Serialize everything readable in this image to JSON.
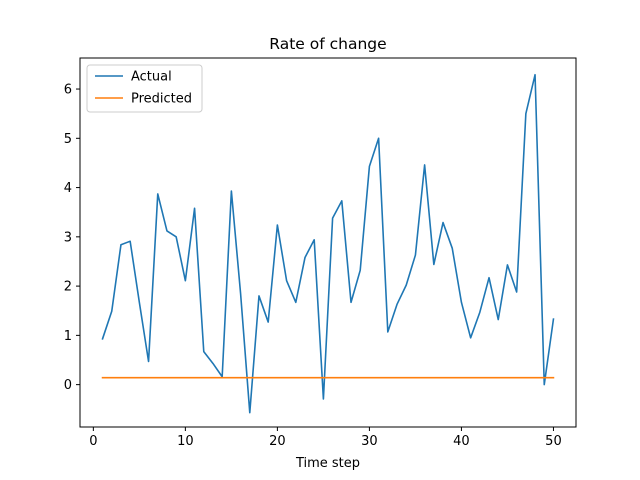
{
  "chart_data": {
    "type": "line",
    "title": "Rate of change",
    "xlabel": "Time step",
    "ylabel": "",
    "xlim": [
      -1.45,
      52.45
    ],
    "ylim": [
      -0.86,
      6.63
    ],
    "xticks": [
      0,
      10,
      20,
      30,
      40,
      50
    ],
    "yticks": [
      0,
      1,
      2,
      3,
      4,
      5,
      6
    ],
    "grid": false,
    "legend_position": "top-left",
    "x": [
      1,
      2,
      3,
      4,
      5,
      6,
      7,
      8,
      9,
      10,
      11,
      12,
      13,
      14,
      15,
      16,
      17,
      18,
      19,
      20,
      21,
      22,
      23,
      24,
      25,
      26,
      27,
      28,
      29,
      30,
      31,
      32,
      33,
      34,
      35,
      36,
      37,
      38,
      39,
      40,
      41,
      42,
      43,
      44,
      45,
      46,
      47,
      48,
      49,
      50
    ],
    "series": [
      {
        "name": "Actual",
        "color": "#1f77b4",
        "values": [
          0.93,
          1.49,
          2.84,
          2.91,
          1.67,
          0.47,
          3.87,
          3.12,
          3.0,
          2.11,
          3.58,
          0.67,
          0.43,
          0.16,
          3.93,
          1.85,
          -0.57,
          1.8,
          1.27,
          3.24,
          2.11,
          1.67,
          2.58,
          2.94,
          -0.29,
          3.38,
          3.73,
          1.67,
          2.32,
          4.43,
          5.0,
          1.07,
          1.63,
          2.02,
          2.63,
          4.46,
          2.44,
          3.29,
          2.77,
          1.67,
          0.95,
          1.47,
          2.17,
          1.32,
          2.43,
          1.88,
          5.5,
          6.29,
          0.0,
          1.33
        ]
      },
      {
        "name": "Predicted",
        "color": "#ff7f0e",
        "values": [
          0.14,
          0.14,
          0.14,
          0.14,
          0.14,
          0.14,
          0.14,
          0.14,
          0.14,
          0.14,
          0.14,
          0.14,
          0.14,
          0.14,
          0.14,
          0.14,
          0.14,
          0.14,
          0.14,
          0.14,
          0.14,
          0.14,
          0.14,
          0.14,
          0.14,
          0.14,
          0.14,
          0.14,
          0.14,
          0.14,
          0.14,
          0.14,
          0.14,
          0.14,
          0.14,
          0.14,
          0.14,
          0.14,
          0.14,
          0.14,
          0.14,
          0.14,
          0.14,
          0.14,
          0.14,
          0.14,
          0.14,
          0.14,
          0.14,
          0.14
        ]
      }
    ]
  }
}
